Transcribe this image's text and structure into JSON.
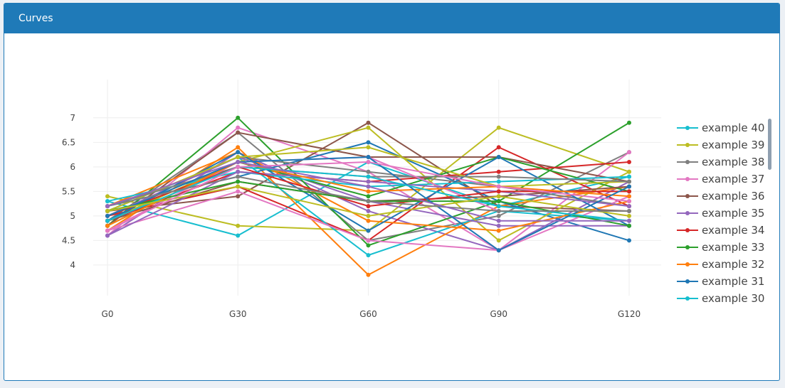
{
  "panel": {
    "title": "Curves"
  },
  "chart_data": {
    "type": "line",
    "x": [
      "G0",
      "G30",
      "G60",
      "G90",
      "G120"
    ],
    "ylim": [
      3.55,
      7.2
    ],
    "yticks": [
      "4",
      "4.5",
      "5",
      "5.5",
      "6",
      "6.5",
      "7"
    ],
    "ytick_values": [
      4,
      4.5,
      5,
      5.5,
      6,
      6.5,
      7
    ],
    "grid": true,
    "legend_position": "right",
    "series": [
      {
        "name": "example 40",
        "color": "#17becf",
        "values": [
          5.3,
          4.6,
          6.1,
          5.2,
          5.8
        ]
      },
      {
        "name": "example 39",
        "color": "#bcbd22",
        "values": [
          5.4,
          4.8,
          4.7,
          6.8,
          5.9
        ]
      },
      {
        "name": "example 38",
        "color": "#7f7f7f",
        "values": [
          4.9,
          6.7,
          4.5,
          5.0,
          6.3
        ]
      },
      {
        "name": "example 37",
        "color": "#e377c2",
        "values": [
          4.6,
          6.8,
          5.9,
          4.3,
          6.3
        ]
      },
      {
        "name": "example 36",
        "color": "#8c564b",
        "values": [
          5.1,
          5.4,
          6.9,
          5.2,
          5.1
        ]
      },
      {
        "name": "example 35",
        "color": "#9467bd",
        "values": [
          4.6,
          6.3,
          5.1,
          4.3,
          5.7
        ]
      },
      {
        "name": "example 34",
        "color": "#d62728",
        "values": [
          5.0,
          5.6,
          4.5,
          6.4,
          5.2
        ]
      },
      {
        "name": "example 33",
        "color": "#2ca02c",
        "values": [
          4.8,
          7.0,
          4.4,
          5.3,
          6.9
        ]
      },
      {
        "name": "example 32",
        "color": "#ff7f0e",
        "values": [
          4.7,
          6.4,
          3.8,
          5.2,
          5.6
        ]
      },
      {
        "name": "example 31",
        "color": "#1f77b4",
        "values": [
          5.2,
          5.8,
          6.5,
          5.3,
          4.5
        ]
      },
      {
        "name": "example 30",
        "color": "#17becf",
        "values": [
          5.1,
          6.2,
          4.2,
          5.1,
          4.9
        ]
      },
      {
        "color": "#bcbd22",
        "values": [
          4.9,
          6.1,
          6.8,
          4.5,
          5.9
        ]
      },
      {
        "color": "#7f7f7f",
        "values": [
          5.1,
          6.2,
          5.9,
          5.6,
          5.2
        ]
      },
      {
        "color": "#e377c2",
        "values": [
          4.7,
          5.5,
          4.5,
          4.3,
          5.4
        ]
      },
      {
        "color": "#8c564b",
        "values": [
          4.8,
          6.7,
          6.2,
          6.2,
          5.7
        ]
      },
      {
        "color": "#9467bd",
        "values": [
          5.0,
          6.2,
          5.3,
          4.8,
          4.8
        ]
      },
      {
        "color": "#d62728",
        "values": [
          4.9,
          5.9,
          5.7,
          5.9,
          6.1
        ]
      },
      {
        "color": "#2ca02c",
        "values": [
          4.8,
          6.1,
          5.4,
          6.2,
          5.5
        ]
      },
      {
        "color": "#ff7f0e",
        "values": [
          5.2,
          6.3,
          4.9,
          4.7,
          5.3
        ]
      },
      {
        "color": "#1f77b4",
        "values": [
          4.9,
          6.3,
          4.7,
          6.2,
          4.8
        ]
      },
      {
        "color": "#17becf",
        "values": [
          5.3,
          5.9,
          5.6,
          5.7,
          5.8
        ]
      },
      {
        "color": "#bcbd22",
        "values": [
          5.1,
          6.2,
          6.4,
          5.6,
          5.7
        ]
      },
      {
        "color": "#7f7f7f",
        "values": [
          5.2,
          6.0,
          5.8,
          5.8,
          5.7
        ]
      },
      {
        "color": "#e377c2",
        "values": [
          4.7,
          6.1,
          6.2,
          5.1,
          5.1
        ]
      },
      {
        "color": "#8c564b",
        "values": [
          4.9,
          5.7,
          5.3,
          5.4,
          5.6
        ]
      },
      {
        "color": "#9467bd",
        "values": [
          4.6,
          5.9,
          5.7,
          5.5,
          5.2
        ]
      },
      {
        "color": "#d62728",
        "values": [
          5.0,
          6.0,
          5.2,
          5.5,
          5.5
        ]
      },
      {
        "color": "#2ca02c",
        "values": [
          5.1,
          5.7,
          5.3,
          5.3,
          4.8
        ]
      },
      {
        "color": "#ff7f0e",
        "values": [
          4.8,
          6.1,
          5.5,
          5.6,
          5.4
        ]
      },
      {
        "color": "#1f77b4",
        "values": [
          5.0,
          6.1,
          6.2,
          4.3,
          5.6
        ]
      },
      {
        "color": "#17becf",
        "values": [
          4.9,
          6.0,
          5.8,
          5.2,
          4.9
        ]
      },
      {
        "color": "#bcbd22",
        "values": [
          5.1,
          5.6,
          5.0,
          5.4,
          5.0
        ]
      },
      {
        "color": "#7f7f7f",
        "values": [
          5.2,
          5.8,
          5.3,
          5.1,
          5.1
        ]
      },
      {
        "color": "#e377c2",
        "values": [
          4.7,
          6.0,
          6.1,
          5.6,
          5.3
        ]
      },
      {
        "color": "#9467bd",
        "values": [
          5.2,
          6.1,
          5.6,
          4.9,
          4.9
        ]
      }
    ]
  }
}
